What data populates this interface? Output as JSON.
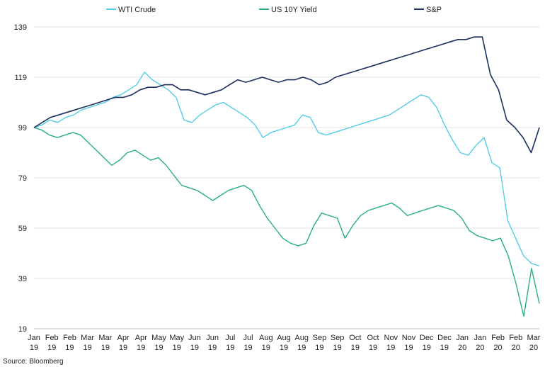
{
  "chart_data": {
    "type": "line",
    "ylim": [
      19,
      139
    ],
    "y_ticks": [
      "139",
      "119",
      "99",
      "79",
      "59",
      "39",
      "19"
    ],
    "grid": "horizontal",
    "legend_position": "top",
    "x_ticks": [
      {
        "month": "Jan",
        "year": "19"
      },
      {
        "month": "Feb",
        "year": "19"
      },
      {
        "month": "Feb",
        "year": "19"
      },
      {
        "month": "Mar",
        "year": "19"
      },
      {
        "month": "Mar",
        "year": "19"
      },
      {
        "month": "Apr",
        "year": "19"
      },
      {
        "month": "Apr",
        "year": "19"
      },
      {
        "month": "May",
        "year": "19"
      },
      {
        "month": "May",
        "year": "19"
      },
      {
        "month": "Jun",
        "year": "19"
      },
      {
        "month": "Jun",
        "year": "19"
      },
      {
        "month": "Jul",
        "year": "19"
      },
      {
        "month": "Jul",
        "year": "19"
      },
      {
        "month": "Aug",
        "year": "19"
      },
      {
        "month": "Aug",
        "year": "19"
      },
      {
        "month": "Aug",
        "year": "19"
      },
      {
        "month": "Sep",
        "year": "19"
      },
      {
        "month": "Sep",
        "year": "19"
      },
      {
        "month": "Oct",
        "year": "19"
      },
      {
        "month": "Oct",
        "year": "19"
      },
      {
        "month": "Nov",
        "year": "19"
      },
      {
        "month": "Nov",
        "year": "19"
      },
      {
        "month": "Dec",
        "year": "19"
      },
      {
        "month": "Dec",
        "year": "19"
      },
      {
        "month": "Jan",
        "year": "20"
      },
      {
        "month": "Jan",
        "year": "20"
      },
      {
        "month": "Feb",
        "year": "20"
      },
      {
        "month": "Feb",
        "year": "20"
      },
      {
        "month": "Mar",
        "year": "20"
      }
    ],
    "series": [
      {
        "name": "WTI Crude",
        "color": "#55ccea",
        "values": [
          99,
          100,
          102,
          101,
          103,
          104,
          106,
          107,
          108,
          109,
          111,
          112,
          114,
          116,
          121,
          118,
          116,
          114,
          111,
          102,
          101,
          104,
          106,
          108,
          109,
          107,
          105,
          103,
          100,
          95,
          97,
          98,
          99,
          100,
          104,
          103,
          97,
          96,
          97,
          98,
          99,
          100,
          101,
          102,
          103,
          104,
          106,
          108,
          110,
          112,
          111,
          107,
          100,
          94,
          89,
          88,
          92,
          95,
          85,
          83,
          62,
          55,
          48,
          45,
          44
        ]
      },
      {
        "name": "US 10Y Yield",
        "color": "#2aae8a",
        "values": [
          99,
          98,
          96,
          95,
          96,
          97,
          96,
          93,
          90,
          87,
          84,
          86,
          89,
          90,
          88,
          86,
          87,
          84,
          80,
          76,
          75,
          74,
          72,
          70,
          72,
          74,
          75,
          76,
          74,
          68,
          63,
          59,
          55,
          53,
          52,
          53,
          60,
          65,
          64,
          63,
          55,
          60,
          64,
          66,
          67,
          68,
          69,
          67,
          64,
          65,
          66,
          67,
          68,
          67,
          66,
          63,
          58,
          56,
          55,
          54,
          55,
          48,
          37,
          24,
          43,
          29
        ]
      },
      {
        "name": "S&P",
        "color": "#1c2f5e",
        "values": [
          99,
          101,
          103,
          104,
          105,
          106,
          107,
          108,
          109,
          110,
          111,
          111,
          112,
          114,
          115,
          115,
          116,
          116,
          114,
          114,
          113,
          112,
          113,
          114,
          116,
          118,
          117,
          118,
          119,
          118,
          117,
          118,
          118,
          119,
          118,
          116,
          117,
          119,
          120,
          121,
          122,
          123,
          124,
          125,
          126,
          127,
          128,
          129,
          130,
          131,
          132,
          133,
          134,
          134,
          135,
          135,
          120,
          114,
          102,
          99,
          95,
          89,
          99
        ]
      }
    ]
  },
  "source_note": "Source: Bloomberg"
}
